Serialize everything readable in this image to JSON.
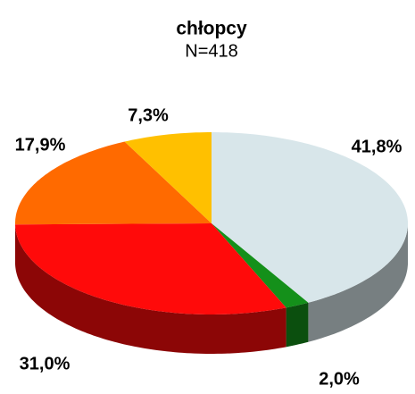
{
  "chart_data": {
    "type": "pie",
    "title": "chłopcy",
    "subtitle": "N=418",
    "categories": [
      null,
      null,
      null,
      null,
      null
    ],
    "values": [
      41.8,
      2.0,
      31.0,
      17.9,
      7.3
    ],
    "value_labels": [
      "41,8%",
      "2,0%",
      "31,0%",
      "17,9%",
      "7,3%"
    ],
    "colors": [
      "#d8e6ea",
      "#14901a",
      "#ff0a0a",
      "#ff6a00",
      "#ffc000"
    ]
  }
}
